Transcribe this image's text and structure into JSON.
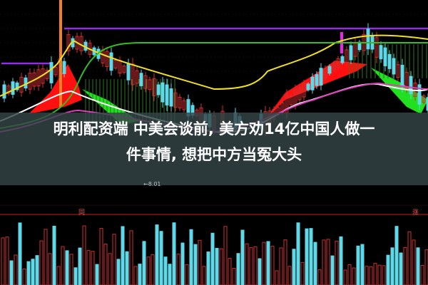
{
  "headline": {
    "line1": "明利配资端 中美会谈前, 美方劝14亿中国人做一",
    "line2": "件事情, 想把中方当冤大头"
  },
  "chart": {
    "low_price_label": "←8.01",
    "volume_marker_left": "同",
    "volume_marker_right": "涨"
  },
  "colors": {
    "background": "#000000",
    "up_candle": "#d03030",
    "down_candle": "#5fd8e8",
    "ma_yellow": "#f0e020",
    "ma_green": "#30c020",
    "ma_purple": "#9030e0",
    "bull_fill": "#ff1010",
    "bear_fill": "#20e020"
  }
}
